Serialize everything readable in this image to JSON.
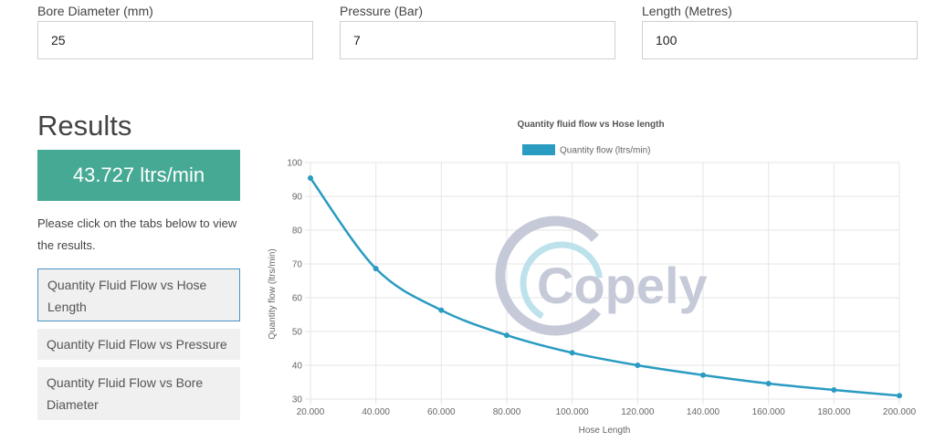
{
  "form": {
    "bore": {
      "label": "Bore Diameter (mm)",
      "value": "25"
    },
    "pressure": {
      "label": "Pressure (Bar)",
      "value": "7"
    },
    "length": {
      "label": "Length (Metres)",
      "value": "100"
    }
  },
  "results": {
    "title": "Results",
    "value": "43.727 ltrs/min",
    "hint": "Please click on the tabs below to view the results.",
    "tabs": [
      {
        "label": "Quantity Fluid Flow vs Hose Length",
        "active": true
      },
      {
        "label": "Quantity Fluid Flow vs Pressure",
        "active": false
      },
      {
        "label": "Quantity Fluid Flow vs Bore Diameter",
        "active": false
      }
    ]
  },
  "watermark": {
    "text": "Copely",
    "color": "#c6cad8"
  },
  "chart_data": {
    "type": "line",
    "title": "Quantity fluid flow vs Hose length",
    "xlabel": "Hose Length",
    "ylabel": "Quantity flow (ltrs/min)",
    "x": [
      20,
      40,
      60,
      80,
      100,
      120,
      140,
      160,
      180,
      200
    ],
    "x_tick_labels": [
      "20.000",
      "40.000",
      "60.000",
      "80.000",
      "100.000",
      "120.000",
      "140.000",
      "160.000",
      "180.000",
      "200.000"
    ],
    "y_ticks": [
      30,
      40,
      50,
      60,
      70,
      80,
      90,
      100
    ],
    "ylim": [
      30,
      100
    ],
    "grid": true,
    "legend": "top-center",
    "series": [
      {
        "name": "Quantity flow (ltrs/min)",
        "color": "#2a9bc1",
        "values": [
          95.4,
          68.6,
          56.3,
          48.9,
          43.7,
          40.0,
          37.1,
          34.6,
          32.7,
          31.0
        ]
      }
    ]
  }
}
